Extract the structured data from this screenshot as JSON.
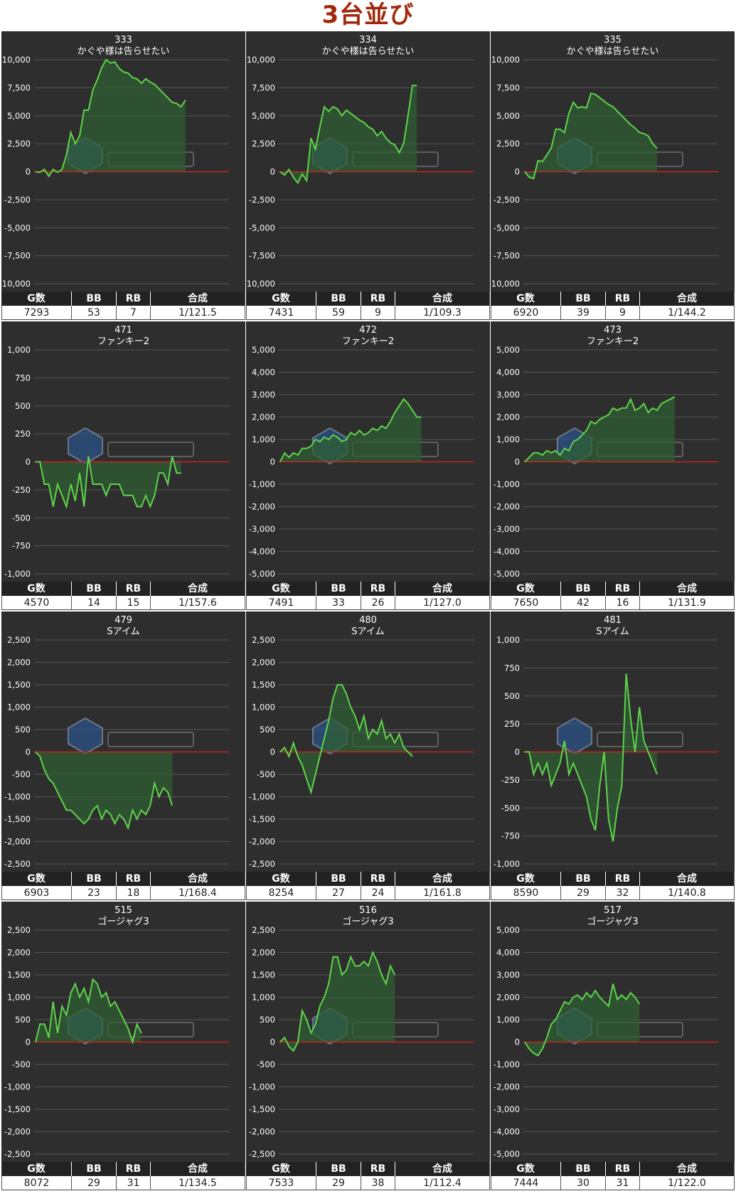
{
  "page_title": "3台並び",
  "stats_headers": {
    "games": "G数",
    "bb": "BB",
    "rb": "RB",
    "ratio": "合成"
  },
  "colors": {
    "line": "#5ed44a",
    "fill": "#2f5d33",
    "zero": "#e0211c",
    "panel": "#2e2e2e",
    "title": "#a0290c"
  },
  "chart_data": [
    {
      "type": "area",
      "number": "333",
      "machine": "かぐや様は告らせたい",
      "ylim": [
        -10000,
        10000
      ],
      "yticks": [
        "10,000",
        "7,500",
        "5,000",
        "2,500",
        "0",
        "-2,500",
        "-5,000",
        "-7,500",
        "-10,000"
      ],
      "values": [
        0,
        -50,
        200,
        -400,
        200,
        -50,
        200,
        1500,
        3500,
        2500,
        3200,
        5500,
        5500,
        7300,
        8200,
        9300,
        10000,
        9700,
        9800,
        9200,
        8900,
        8800,
        8400,
        8300,
        7900,
        8300,
        8000,
        7800,
        7400,
        7000,
        6600,
        6200,
        6100,
        5800,
        6400
      ],
      "games": "7293",
      "bb": "53",
      "rb": "7",
      "ratio": "1/121.5"
    },
    {
      "type": "area",
      "number": "334",
      "machine": "かぐや様は告らせたい",
      "ylim": [
        -10000,
        10000
      ],
      "yticks": [
        "10,000",
        "7,500",
        "5,000",
        "2,500",
        "0",
        "-2,500",
        "-5,000",
        "-7,500",
        "-10,000"
      ],
      "values": [
        0,
        -300,
        200,
        -500,
        -1000,
        -200,
        -800,
        3000,
        2000,
        4000,
        5800,
        5400,
        5800,
        5600,
        5000,
        5500,
        5200,
        4900,
        4600,
        4400,
        4000,
        3800,
        3200,
        3600,
        3000,
        2600,
        2400,
        1700,
        2500,
        5000,
        7700,
        7700
      ],
      "games": "7431",
      "bb": "59",
      "rb": "9",
      "ratio": "1/109.3"
    },
    {
      "type": "area",
      "number": "335",
      "machine": "かぐや様は告らせたい",
      "ylim": [
        -10000,
        10000
      ],
      "yticks": [
        "10,000",
        "7,500",
        "5,000",
        "2,500",
        "0",
        "-2,500",
        "-5,000",
        "-7,500",
        "-10,000"
      ],
      "values": [
        0,
        -500,
        -600,
        1000,
        900,
        1500,
        2100,
        3800,
        3800,
        3500,
        5200,
        6200,
        5700,
        5800,
        5700,
        7000,
        6900,
        6600,
        6300,
        6000,
        5800,
        5400,
        5000,
        4600,
        4200,
        3900,
        3500,
        3400,
        3200,
        2500,
        2100
      ],
      "games": "6920",
      "bb": "39",
      "rb": "9",
      "ratio": "1/144.2"
    },
    {
      "type": "area",
      "number": "471",
      "machine": "ファンキー2",
      "ylim": [
        -1000,
        1000
      ],
      "yticks": [
        "1,000",
        "750",
        "500",
        "250",
        "0",
        "-250",
        "-500",
        "-750",
        "-1,000"
      ],
      "values": [
        0,
        0,
        -200,
        -200,
        -400,
        -200,
        -300,
        -400,
        -200,
        -350,
        -100,
        -400,
        50,
        -200,
        -200,
        -200,
        -300,
        -200,
        -200,
        -200,
        -300,
        -300,
        -300,
        -400,
        -400,
        -300,
        -400,
        -300,
        -100,
        -100,
        -200,
        50,
        -100,
        -100
      ],
      "games": "4570",
      "bb": "14",
      "rb": "15",
      "ratio": "1/157.6"
    },
    {
      "type": "area",
      "number": "472",
      "machine": "ファンキー2",
      "ylim": [
        -5000,
        5000
      ],
      "yticks": [
        "5,000",
        "4,000",
        "3,000",
        "2,000",
        "1,000",
        "0",
        "-1,000",
        "-2,000",
        "-3,000",
        "-4,000",
        "-5,000"
      ],
      "values": [
        0,
        400,
        200,
        400,
        300,
        600,
        600,
        700,
        1000,
        900,
        1100,
        1000,
        1200,
        1100,
        900,
        1000,
        1300,
        1200,
        1400,
        1200,
        1300,
        1500,
        1400,
        1600,
        1500,
        1800,
        2200,
        2500,
        2800,
        2600,
        2300,
        2000,
        2000
      ],
      "games": "7491",
      "bb": "33",
      "rb": "26",
      "ratio": "1/127.0"
    },
    {
      "type": "area",
      "number": "473",
      "machine": "ファンキー2",
      "ylim": [
        -5000,
        5000
      ],
      "yticks": [
        "5,000",
        "4,000",
        "3,000",
        "2,000",
        "1,000",
        "0",
        "-1,000",
        "-2,000",
        "-3,000",
        "-4,000",
        "-5,000"
      ],
      "values": [
        0,
        200,
        400,
        400,
        300,
        500,
        400,
        500,
        300,
        600,
        500,
        900,
        1000,
        1200,
        1400,
        1800,
        1700,
        1900,
        2000,
        2100,
        2400,
        2300,
        2400,
        2400,
        2800,
        2300,
        2400,
        2600,
        2200,
        2400,
        2300,
        2600,
        2700,
        2800,
        2900
      ],
      "games": "7650",
      "bb": "42",
      "rb": "16",
      "ratio": "1/131.9"
    },
    {
      "type": "area",
      "number": "479",
      "machine": "Sアイム",
      "ylim": [
        -2500,
        2500
      ],
      "yticks": [
        "2,500",
        "2,000",
        "1,500",
        "1,000",
        "500",
        "0",
        "-500",
        "-1,000",
        "-1,500",
        "-2,000",
        "-2,500"
      ],
      "values": [
        0,
        -100,
        -400,
        -600,
        -700,
        -900,
        -1100,
        -1300,
        -1300,
        -1400,
        -1500,
        -1600,
        -1500,
        -1300,
        -1200,
        -1500,
        -1300,
        -1400,
        -1600,
        -1400,
        -1500,
        -1700,
        -1300,
        -1500,
        -1300,
        -1400,
        -1200,
        -700,
        -1000,
        -800,
        -900,
        -1200
      ],
      "games": "6903",
      "bb": "23",
      "rb": "18",
      "ratio": "1/168.4"
    },
    {
      "type": "area",
      "number": "480",
      "machine": "Sアイム",
      "ylim": [
        -2500,
        2500
      ],
      "yticks": [
        "2,500",
        "2,000",
        "1,500",
        "1,000",
        "500",
        "0",
        "-500",
        "-1,000",
        "-1,500",
        "-2,000",
        "-2,500"
      ],
      "values": [
        0,
        100,
        -100,
        200,
        -100,
        -300,
        -600,
        -900,
        -500,
        -100,
        300,
        700,
        1200,
        1500,
        1500,
        1300,
        1000,
        800,
        500,
        800,
        300,
        500,
        400,
        700,
        300,
        400,
        200,
        400,
        100,
        0,
        -100
      ],
      "games": "8254",
      "bb": "27",
      "rb": "24",
      "ratio": "1/161.8"
    },
    {
      "type": "area",
      "number": "481",
      "machine": "Sアイム",
      "ylim": [
        -1000,
        1000
      ],
      "yticks": [
        "1,000",
        "750",
        "500",
        "250",
        "0",
        "-250",
        "-500",
        "-750",
        "-1,000"
      ],
      "values": [
        0,
        0,
        -200,
        -100,
        -200,
        -100,
        -300,
        -200,
        -100,
        100,
        -200,
        -100,
        -200,
        -300,
        -400,
        -600,
        -700,
        -300,
        0,
        -600,
        -800,
        -500,
        -300,
        700,
        300,
        0,
        400,
        100,
        0,
        -100,
        -200
      ],
      "games": "8590",
      "bb": "29",
      "rb": "32",
      "ratio": "1/140.8"
    },
    {
      "type": "area",
      "number": "515",
      "machine": "ゴージャグ3",
      "ylim": [
        -2500,
        2500
      ],
      "yticks": [
        "2,500",
        "2,000",
        "1,500",
        "1,000",
        "500",
        "0",
        "-500",
        "-1,000",
        "-1,500",
        "-2,000",
        "-2,500"
      ],
      "values": [
        0,
        400,
        400,
        100,
        900,
        200,
        800,
        600,
        1100,
        1300,
        1000,
        1200,
        900,
        1400,
        1300,
        1000,
        1100,
        800,
        900,
        700,
        500,
        300,
        0,
        400,
        200
      ],
      "games": "8072",
      "bb": "29",
      "rb": "31",
      "ratio": "1/134.5"
    },
    {
      "type": "area",
      "number": "516",
      "machine": "ゴージャグ3",
      "ylim": [
        -2500,
        2500
      ],
      "yticks": [
        "2,500",
        "2,000",
        "1,500",
        "1,000",
        "500",
        "0",
        "-500",
        "-1,000",
        "-1,500",
        "-2,000",
        "-2,500"
      ],
      "values": [
        0,
        100,
        -100,
        -200,
        0,
        700,
        500,
        200,
        400,
        800,
        1000,
        1300,
        1900,
        1900,
        1500,
        1600,
        1900,
        1700,
        1700,
        1800,
        1700,
        2000,
        1800,
        1500,
        1300,
        1700,
        1500
      ],
      "games": "7533",
      "bb": "29",
      "rb": "38",
      "ratio": "1/112.4"
    },
    {
      "type": "area",
      "number": "517",
      "machine": "ゴージャグ3",
      "ylim": [
        -5000,
        5000
      ],
      "yticks": [
        "5,000",
        "4,000",
        "3,000",
        "2,000",
        "1,000",
        "0",
        "-1,000",
        "-2,000",
        "-3,000",
        "-4,000",
        "-5,000"
      ],
      "values": [
        0,
        -300,
        -500,
        -600,
        -300,
        200,
        800,
        1000,
        1400,
        1800,
        1700,
        2000,
        2100,
        1900,
        2200,
        2000,
        2300,
        2000,
        1800,
        1600,
        2600,
        1900,
        2100,
        1900,
        2200,
        2000,
        1700
      ],
      "games": "7444",
      "bb": "30",
      "rb": "31",
      "ratio": "1/122.0"
    }
  ]
}
